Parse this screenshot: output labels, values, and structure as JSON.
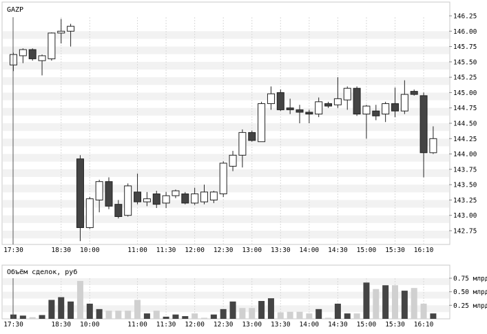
{
  "chart_data": [
    {
      "type": "candlestick",
      "title": "GAZP",
      "x_labels": [
        "17:30",
        "18:30",
        "10:00",
        "11:00",
        "11:30",
        "12:00",
        "12:30",
        "13:00",
        "13:30",
        "14:00",
        "14:30",
        "15:00",
        "15:30",
        "16:10"
      ],
      "y_ticks": [
        "146.25",
        "146.00",
        "145.75",
        "145.50",
        "145.25",
        "145.00",
        "144.75",
        "144.50",
        "144.25",
        "144.00",
        "143.75",
        "143.50",
        "143.25",
        "143.00",
        "142.75"
      ],
      "ylim": [
        142.55,
        146.3
      ],
      "grid": true,
      "up_color": "#ffffff",
      "down_color": "#444444",
      "candles": [
        {
          "o": 145.45,
          "h": 145.65,
          "l": 145.35,
          "c": 145.62
        },
        {
          "o": 145.6,
          "h": 145.72,
          "l": 145.48,
          "c": 145.7
        },
        {
          "o": 145.7,
          "h": 145.72,
          "l": 145.52,
          "c": 145.55
        },
        {
          "o": 145.52,
          "h": 145.62,
          "l": 145.28,
          "c": 145.6
        },
        {
          "o": 145.55,
          "h": 145.98,
          "l": 145.52,
          "c": 145.97
        },
        {
          "o": 145.97,
          "h": 146.2,
          "l": 145.8,
          "c": 146.0
        },
        {
          "o": 146.0,
          "h": 146.12,
          "l": 145.75,
          "c": 146.08
        },
        {
          "o": 143.92,
          "h": 143.98,
          "l": 142.58,
          "c": 142.8
        },
        {
          "o": 142.8,
          "h": 143.3,
          "l": 142.78,
          "c": 143.27
        },
        {
          "o": 143.25,
          "h": 143.58,
          "l": 143.05,
          "c": 143.55
        },
        {
          "o": 143.55,
          "h": 143.62,
          "l": 143.1,
          "c": 143.15
        },
        {
          "o": 143.18,
          "h": 143.25,
          "l": 142.95,
          "c": 142.98
        },
        {
          "o": 143.0,
          "h": 143.52,
          "l": 142.98,
          "c": 143.48
        },
        {
          "o": 143.38,
          "h": 143.68,
          "l": 143.18,
          "c": 143.22
        },
        {
          "o": 143.22,
          "h": 143.38,
          "l": 143.15,
          "c": 143.27
        },
        {
          "o": 143.35,
          "h": 143.4,
          "l": 143.12,
          "c": 143.18
        },
        {
          "o": 143.2,
          "h": 143.38,
          "l": 143.12,
          "c": 143.32
        },
        {
          "o": 143.32,
          "h": 143.42,
          "l": 143.28,
          "c": 143.4
        },
        {
          "o": 143.35,
          "h": 143.38,
          "l": 143.18,
          "c": 143.2
        },
        {
          "o": 143.2,
          "h": 143.45,
          "l": 143.17,
          "c": 143.35
        },
        {
          "o": 143.22,
          "h": 143.5,
          "l": 143.18,
          "c": 143.38
        },
        {
          "o": 143.25,
          "h": 143.4,
          "l": 143.2,
          "c": 143.38
        },
        {
          "o": 143.35,
          "h": 143.88,
          "l": 143.3,
          "c": 143.85
        },
        {
          "o": 143.8,
          "h": 144.05,
          "l": 143.72,
          "c": 143.98
        },
        {
          "o": 143.98,
          "h": 144.4,
          "l": 143.78,
          "c": 144.35
        },
        {
          "o": 144.35,
          "h": 144.38,
          "l": 144.2,
          "c": 144.22
        },
        {
          "o": 144.2,
          "h": 144.85,
          "l": 144.2,
          "c": 144.82
        },
        {
          "o": 144.82,
          "h": 145.1,
          "l": 144.72,
          "c": 144.98
        },
        {
          "o": 145.0,
          "h": 145.05,
          "l": 144.7,
          "c": 144.72
        },
        {
          "o": 144.75,
          "h": 144.9,
          "l": 144.65,
          "c": 144.72
        },
        {
          "o": 144.72,
          "h": 144.8,
          "l": 144.5,
          "c": 144.68
        },
        {
          "o": 144.68,
          "h": 144.72,
          "l": 144.5,
          "c": 144.65
        },
        {
          "o": 144.65,
          "h": 144.92,
          "l": 144.6,
          "c": 144.85
        },
        {
          "o": 144.82,
          "h": 144.85,
          "l": 144.75,
          "c": 144.78
        },
        {
          "o": 144.8,
          "h": 145.25,
          "l": 144.75,
          "c": 144.9
        },
        {
          "o": 144.88,
          "h": 145.1,
          "l": 144.72,
          "c": 145.07
        },
        {
          "o": 145.07,
          "h": 145.1,
          "l": 144.62,
          "c": 144.65
        },
        {
          "o": 144.65,
          "h": 144.8,
          "l": 144.25,
          "c": 144.78
        },
        {
          "o": 144.7,
          "h": 144.8,
          "l": 144.55,
          "c": 144.62
        },
        {
          "o": 144.65,
          "h": 144.85,
          "l": 144.52,
          "c": 144.82
        },
        {
          "o": 144.82,
          "h": 145.08,
          "l": 144.6,
          "c": 144.7
        },
        {
          "o": 144.7,
          "h": 145.2,
          "l": 144.65,
          "c": 144.97
        },
        {
          "o": 145.02,
          "h": 145.05,
          "l": 144.95,
          "c": 144.97
        },
        {
          "o": 144.95,
          "h": 145.0,
          "l": 143.62,
          "c": 144.02
        },
        {
          "o": 144.02,
          "h": 144.45,
          "l": 144.0,
          "c": 144.25
        }
      ]
    },
    {
      "type": "bar",
      "title": "Объём сделок, руб",
      "y_ticks": [
        "0.75 млрд",
        "0.50 млрд",
        "0.25 млрд"
      ],
      "ylim": [
        0,
        0.88
      ],
      "unit": "млрд руб",
      "up_color": "#d0d0d0",
      "down_color": "#444444",
      "values": [
        0.08,
        0.06,
        0.03,
        0.07,
        0.35,
        0.4,
        0.32,
        0.7,
        0.28,
        0.18,
        0.15,
        0.15,
        0.15,
        0.35,
        0.1,
        0.15,
        0.04,
        0.08,
        0.05,
        0.1,
        0.02,
        0.08,
        0.18,
        0.32,
        0.2,
        0.2,
        0.33,
        0.38,
        0.12,
        0.13,
        0.13,
        0.1,
        0.18,
        0.02,
        0.28,
        0.1,
        0.1,
        0.67,
        0.55,
        0.62,
        0.62,
        0.52,
        0.57,
        0.28,
        0.1
      ],
      "dark": [
        true,
        true,
        false,
        true,
        true,
        true,
        true,
        false,
        true,
        true,
        false,
        false,
        false,
        false,
        true,
        false,
        true,
        true,
        true,
        false,
        false,
        true,
        true,
        true,
        false,
        false,
        true,
        true,
        false,
        false,
        false,
        false,
        true,
        false,
        true,
        true,
        false,
        true,
        false,
        true,
        false,
        true,
        false,
        false,
        true
      ]
    }
  ]
}
